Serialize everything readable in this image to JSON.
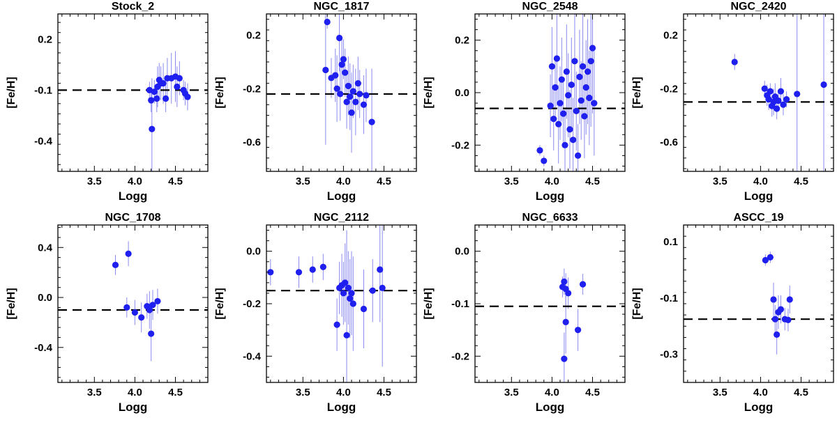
{
  "colors": {
    "points": "#1f1ff0",
    "errorbars": "#8a8af0",
    "axes": "#000000",
    "reference_line": "#000000"
  },
  "chart_data": [
    {
      "type": "scatter",
      "title": "Stock_2",
      "xlabel": "Logg",
      "ylabel": "[Fe/H]",
      "xlim": [
        3.05,
        4.9
      ],
      "ylim": [
        -0.58,
        0.35
      ],
      "xticks": [
        "3.5",
        "4.0",
        "4.5"
      ],
      "yticks": [
        "0.2",
        "-0.1",
        "-0.4"
      ],
      "reference_line": -0.1,
      "points": [
        {
          "x": 4.18,
          "y": -0.1,
          "err": 0.05
        },
        {
          "x": 4.2,
          "y": -0.16,
          "err": 0.07
        },
        {
          "x": 4.21,
          "y": -0.33,
          "err": 0.3
        },
        {
          "x": 4.24,
          "y": -0.11,
          "err": 0.07
        },
        {
          "x": 4.27,
          "y": -0.15,
          "err": 0.08
        },
        {
          "x": 4.28,
          "y": -0.08,
          "err": 0.12
        },
        {
          "x": 4.3,
          "y": -0.04,
          "err": 0.1
        },
        {
          "x": 4.32,
          "y": -0.06,
          "err": 0.1
        },
        {
          "x": 4.35,
          "y": -0.06,
          "err": 0.12
        },
        {
          "x": 4.38,
          "y": -0.15,
          "err": 0.08
        },
        {
          "x": 4.4,
          "y": -0.03,
          "err": 0.12
        },
        {
          "x": 4.45,
          "y": -0.03,
          "err": 0.15
        },
        {
          "x": 4.5,
          "y": -0.02,
          "err": 0.15
        },
        {
          "x": 4.52,
          "y": -0.08,
          "err": 0.12
        },
        {
          "x": 4.55,
          "y": -0.03,
          "err": 0.1
        },
        {
          "x": 4.6,
          "y": -0.1,
          "err": 0.06
        },
        {
          "x": 4.62,
          "y": -0.12,
          "err": 0.07
        },
        {
          "x": 4.65,
          "y": -0.14,
          "err": 0.08
        }
      ]
    },
    {
      "type": "scatter",
      "title": "NGC_1817",
      "xlabel": "Logg",
      "ylabel": "[Fe/H]",
      "xlim": [
        3.05,
        4.9
      ],
      "ylim": [
        -0.82,
        0.36
      ],
      "xticks": [
        "3.5",
        "4.0",
        "4.5"
      ],
      "yticks": [
        "0.2",
        "-0.2",
        "-0.6"
      ],
      "reference_line": -0.24,
      "points": [
        {
          "x": 3.8,
          "y": 0.3,
          "err": 0.05
        },
        {
          "x": 3.78,
          "y": -0.06,
          "err": 0.56
        },
        {
          "x": 3.85,
          "y": -0.12,
          "err": 0.15
        },
        {
          "x": 3.9,
          "y": -0.1,
          "err": 0.2
        },
        {
          "x": 3.95,
          "y": 0.18,
          "err": 0.25
        },
        {
          "x": 3.98,
          "y": -0.02,
          "err": 0.2
        },
        {
          "x": 4.0,
          "y": 0.02,
          "err": 0.15
        },
        {
          "x": 3.92,
          "y": -0.2,
          "err": 0.25
        },
        {
          "x": 3.96,
          "y": -0.24,
          "err": 0.2
        },
        {
          "x": 4.02,
          "y": -0.08,
          "err": 0.18
        },
        {
          "x": 4.04,
          "y": -0.3,
          "err": 0.2
        },
        {
          "x": 4.06,
          "y": -0.18,
          "err": 0.22
        },
        {
          "x": 4.08,
          "y": -0.26,
          "err": 0.25
        },
        {
          "x": 4.1,
          "y": -0.38,
          "err": 0.3
        },
        {
          "x": 4.12,
          "y": -0.22,
          "err": 0.2
        },
        {
          "x": 4.15,
          "y": -0.3,
          "err": 0.25
        },
        {
          "x": 4.18,
          "y": -0.16,
          "err": 0.2
        },
        {
          "x": 4.2,
          "y": -0.24,
          "err": 0.18
        },
        {
          "x": 4.25,
          "y": -0.32,
          "err": 0.22
        },
        {
          "x": 4.28,
          "y": -0.25,
          "err": 0.2
        },
        {
          "x": 4.35,
          "y": -0.45,
          "err": 0.4
        }
      ]
    },
    {
      "type": "scatter",
      "title": "NGC_2548",
      "xlabel": "Logg",
      "ylabel": "[Fe/H]",
      "xlim": [
        3.05,
        4.9
      ],
      "ylim": [
        -0.3,
        0.3
      ],
      "xticks": [
        "3.5",
        "4.0",
        "4.5"
      ],
      "yticks": [
        "0.2",
        "0.0",
        "-0.2"
      ],
      "reference_line": -0.06,
      "points": [
        {
          "x": 3.85,
          "y": -0.22,
          "err": 0.02
        },
        {
          "x": 3.9,
          "y": -0.26,
          "err": 0.02
        },
        {
          "x": 3.98,
          "y": -0.05,
          "err": 0.12
        },
        {
          "x": 4.0,
          "y": 0.1,
          "err": 0.15
        },
        {
          "x": 4.02,
          "y": -0.1,
          "err": 0.12
        },
        {
          "x": 4.04,
          "y": 0.02,
          "err": 0.12
        },
        {
          "x": 4.06,
          "y": 0.13,
          "err": 0.18
        },
        {
          "x": 4.08,
          "y": -0.12,
          "err": 0.15
        },
        {
          "x": 4.1,
          "y": -0.04,
          "err": 0.14
        },
        {
          "x": 4.12,
          "y": 0.05,
          "err": 0.16
        },
        {
          "x": 4.14,
          "y": -0.08,
          "err": 0.12
        },
        {
          "x": 4.16,
          "y": -0.2,
          "err": 0.14
        },
        {
          "x": 4.18,
          "y": 0.08,
          "err": 0.18
        },
        {
          "x": 4.2,
          "y": -0.01,
          "err": 0.16
        },
        {
          "x": 4.22,
          "y": -0.14,
          "err": 0.15
        },
        {
          "x": 4.24,
          "y": 0.03,
          "err": 0.18
        },
        {
          "x": 4.26,
          "y": -0.18,
          "err": 0.16
        },
        {
          "x": 4.28,
          "y": 0.12,
          "err": 0.2
        },
        {
          "x": 4.3,
          "y": -0.07,
          "err": 0.15
        },
        {
          "x": 4.32,
          "y": -0.24,
          "err": 0.12
        },
        {
          "x": 4.34,
          "y": 0.06,
          "err": 0.18
        },
        {
          "x": 4.36,
          "y": -0.03,
          "err": 0.15
        },
        {
          "x": 4.38,
          "y": 0.1,
          "err": 0.2
        },
        {
          "x": 4.4,
          "y": -0.09,
          "err": 0.16
        },
        {
          "x": 4.42,
          "y": 0.02,
          "err": 0.18
        },
        {
          "x": 4.44,
          "y": 0.08,
          "err": 0.2
        },
        {
          "x": 4.46,
          "y": -0.02,
          "err": 0.18
        },
        {
          "x": 4.48,
          "y": 0.12,
          "err": 0.25
        },
        {
          "x": 4.5,
          "y": 0.17,
          "err": 0.25
        },
        {
          "x": 4.52,
          "y": -0.04,
          "err": 0.2
        }
      ]
    },
    {
      "type": "scatter",
      "title": "NGC_2420",
      "xlabel": "Logg",
      "ylabel": "[Fe/H]",
      "xlim": [
        3.05,
        4.9
      ],
      "ylim": [
        -0.82,
        0.36
      ],
      "xticks": [
        "3.5",
        "4.0",
        "4.5"
      ],
      "yticks": [
        "0.2",
        "-0.2",
        "-0.6"
      ],
      "reference_line": -0.3,
      "points": [
        {
          "x": 3.68,
          "y": 0.0,
          "err": 0.06
        },
        {
          "x": 4.05,
          "y": -0.2,
          "err": 0.06
        },
        {
          "x": 4.08,
          "y": -0.25,
          "err": 0.08
        },
        {
          "x": 4.1,
          "y": -0.28,
          "err": 0.08
        },
        {
          "x": 4.12,
          "y": -0.22,
          "err": 0.06
        },
        {
          "x": 4.14,
          "y": -0.33,
          "err": 0.08
        },
        {
          "x": 4.16,
          "y": -0.3,
          "err": 0.1
        },
        {
          "x": 4.18,
          "y": -0.26,
          "err": 0.1
        },
        {
          "x": 4.2,
          "y": -0.35,
          "err": 0.08
        },
        {
          "x": 4.22,
          "y": -0.29,
          "err": 0.08
        },
        {
          "x": 4.25,
          "y": -0.22,
          "err": 0.1
        },
        {
          "x": 4.28,
          "y": -0.32,
          "err": 0.08
        },
        {
          "x": 4.32,
          "y": -0.28,
          "err": 0.06
        },
        {
          "x": 4.45,
          "y": -0.24,
          "err": 0.7
        },
        {
          "x": 4.78,
          "y": -0.17,
          "err": 0.7
        }
      ]
    },
    {
      "type": "scatter",
      "title": "NGC_1708",
      "xlabel": "Logg",
      "ylabel": "[Fe/H]",
      "xlim": [
        3.05,
        4.9
      ],
      "ylim": [
        -0.68,
        0.58
      ],
      "xticks": [
        "3.5",
        "4.0",
        "4.5"
      ],
      "yticks": [
        "0.4",
        "0.0",
        "-0.4"
      ],
      "reference_line": -0.1,
      "points": [
        {
          "x": 3.76,
          "y": 0.26,
          "err": 0.08
        },
        {
          "x": 3.92,
          "y": 0.35,
          "err": 0.1
        },
        {
          "x": 3.9,
          "y": -0.08,
          "err": 0.08
        },
        {
          "x": 4.0,
          "y": -0.12,
          "err": 0.1
        },
        {
          "x": 4.08,
          "y": -0.16,
          "err": 0.12
        },
        {
          "x": 4.15,
          "y": -0.07,
          "err": 0.1
        },
        {
          "x": 4.18,
          "y": -0.1,
          "err": 0.15
        },
        {
          "x": 4.2,
          "y": -0.29,
          "err": 0.22
        },
        {
          "x": 4.22,
          "y": -0.06,
          "err": 0.12
        },
        {
          "x": 4.28,
          "y": -0.03,
          "err": 0.1
        }
      ]
    },
    {
      "type": "scatter",
      "title": "NGC_2112",
      "xlabel": "Logg",
      "ylabel": "[Fe/H]",
      "xlim": [
        3.05,
        4.9
      ],
      "ylim": [
        -0.5,
        0.1
      ],
      "xticks": [
        "3.5",
        "4.0",
        "4.5"
      ],
      "yticks": [
        "0.0",
        "-0.2",
        "-0.4"
      ],
      "reference_line": -0.15,
      "points": [
        {
          "x": 3.1,
          "y": -0.08,
          "err": 0.05
        },
        {
          "x": 3.45,
          "y": -0.08,
          "err": 0.06
        },
        {
          "x": 3.62,
          "y": -0.07,
          "err": 0.05
        },
        {
          "x": 3.75,
          "y": -0.06,
          "err": 0.05
        },
        {
          "x": 3.92,
          "y": -0.28,
          "err": 0.1
        },
        {
          "x": 3.95,
          "y": -0.14,
          "err": 0.1
        },
        {
          "x": 3.98,
          "y": -0.13,
          "err": 0.12
        },
        {
          "x": 4.0,
          "y": -0.16,
          "err": 0.12
        },
        {
          "x": 4.02,
          "y": -0.12,
          "err": 0.15
        },
        {
          "x": 4.04,
          "y": -0.32,
          "err": 0.4
        },
        {
          "x": 4.06,
          "y": -0.14,
          "err": 0.14
        },
        {
          "x": 4.08,
          "y": -0.18,
          "err": 0.15
        },
        {
          "x": 4.1,
          "y": -0.16,
          "err": 0.16
        },
        {
          "x": 4.12,
          "y": -0.2,
          "err": 0.18
        },
        {
          "x": 4.25,
          "y": -0.22,
          "err": 0.15
        },
        {
          "x": 4.36,
          "y": -0.15,
          "err": 0.12
        },
        {
          "x": 4.45,
          "y": -0.07,
          "err": 0.2
        },
        {
          "x": 4.48,
          "y": -0.14,
          "err": 0.3
        }
      ]
    },
    {
      "type": "scatter",
      "title": "NGC_6633",
      "xlabel": "Logg",
      "ylabel": "[Fe/H]",
      "xlim": [
        3.05,
        4.9
      ],
      "ylim": [
        -0.25,
        0.05
      ],
      "xticks": [
        "3.5",
        "4.0",
        "4.5"
      ],
      "yticks": [
        "0.0",
        "-0.1",
        "-0.2"
      ],
      "reference_line": -0.105,
      "points": [
        {
          "x": 4.13,
          "y": -0.068,
          "err": 0.02
        },
        {
          "x": 4.15,
          "y": -0.058,
          "err": 0.025
        },
        {
          "x": 4.17,
          "y": -0.072,
          "err": 0.03
        },
        {
          "x": 4.15,
          "y": -0.205,
          "err": 0.05
        },
        {
          "x": 4.17,
          "y": -0.135,
          "err": 0.06
        },
        {
          "x": 4.2,
          "y": -0.08,
          "err": 0.03
        },
        {
          "x": 4.32,
          "y": -0.15,
          "err": 0.04
        },
        {
          "x": 4.38,
          "y": -0.063,
          "err": 0.02
        }
      ]
    },
    {
      "type": "scatter",
      "title": "ASCC_19",
      "xlabel": "Logg",
      "ylabel": "[Fe/H]",
      "xlim": [
        3.05,
        4.9
      ],
      "ylim": [
        -0.4,
        0.16
      ],
      "xticks": [
        "3.5",
        "4.0",
        "4.5"
      ],
      "yticks": [
        "0.1",
        "-0.1",
        "-0.3"
      ],
      "reference_line": -0.175,
      "points": [
        {
          "x": 4.06,
          "y": 0.035,
          "err": 0.02
        },
        {
          "x": 4.12,
          "y": 0.045,
          "err": 0.02
        },
        {
          "x": 4.16,
          "y": -0.105,
          "err": 0.06
        },
        {
          "x": 4.18,
          "y": -0.175,
          "err": 0.05
        },
        {
          "x": 4.2,
          "y": -0.23,
          "err": 0.07
        },
        {
          "x": 4.22,
          "y": -0.15,
          "err": 0.06
        },
        {
          "x": 4.25,
          "y": -0.14,
          "err": 0.05
        },
        {
          "x": 4.3,
          "y": -0.175,
          "err": 0.04
        },
        {
          "x": 4.34,
          "y": -0.178,
          "err": 0.04
        },
        {
          "x": 4.36,
          "y": -0.105,
          "err": 0.05
        }
      ]
    }
  ]
}
